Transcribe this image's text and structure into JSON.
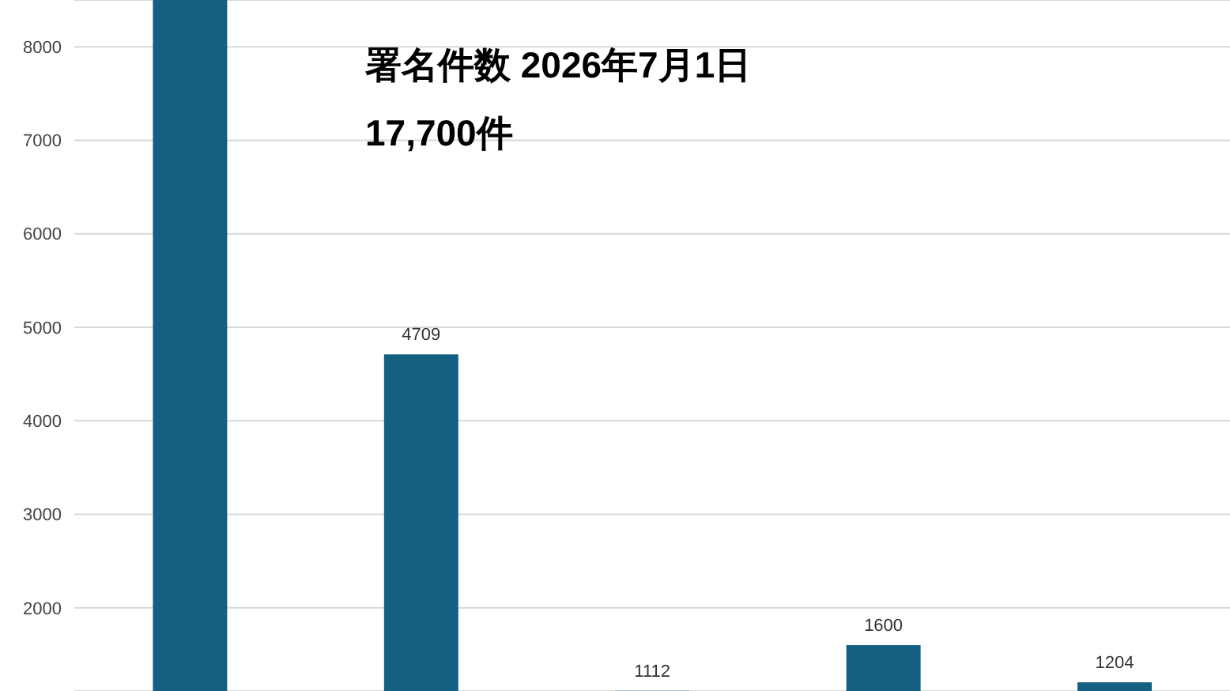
{
  "chart_data": {
    "type": "bar",
    "title": "署名件数 2026年7月1日",
    "annotations": [
      "17,700件"
    ],
    "categories": [
      null,
      null,
      null,
      null,
      null
    ],
    "values": [
      8500,
      4709,
      1112,
      1600,
      1204
    ],
    "value_labels": [
      null,
      "4709",
      "1112",
      "1600",
      "1204"
    ],
    "color": "#155f82",
    "ylim": [
      1110,
      8500
    ],
    "yticks": [
      2000,
      3000,
      4000,
      5000,
      6000,
      7000,
      8000
    ],
    "grid": "y"
  }
}
